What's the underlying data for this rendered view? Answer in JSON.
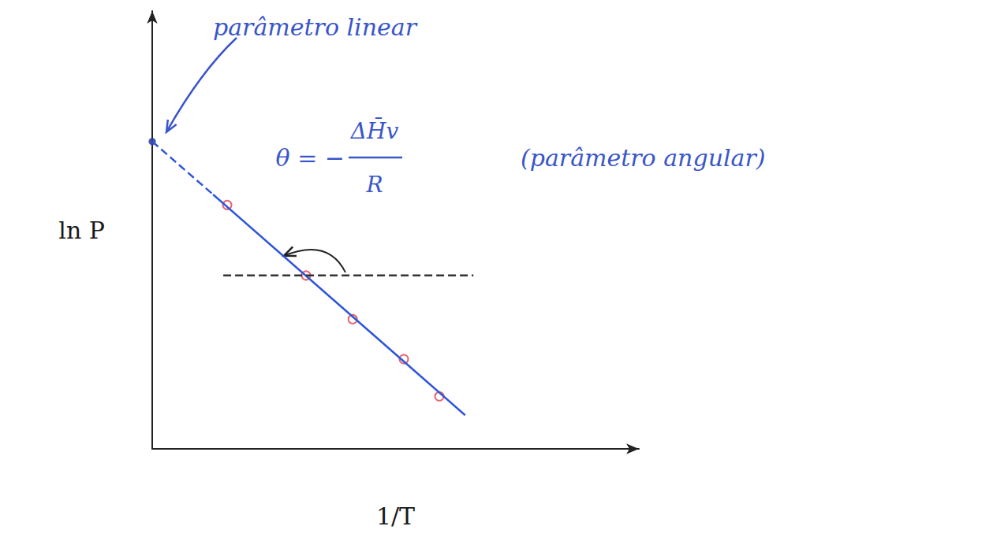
{
  "chart_data": {
    "type": "scatter",
    "x_label": "1/T",
    "y_label": "ln P",
    "xlim": [
      0,
      10
    ],
    "ylim": [
      0,
      10
    ],
    "tick_labels": false,
    "grid": false,
    "series": [
      {
        "type": "line",
        "color": "#2f56d8",
        "line_style": "dashed",
        "x": [
          0,
          1.25
        ],
        "values": [
          7.02,
          5.81
        ]
      },
      {
        "type": "line",
        "color": "#2f56d8",
        "line_style": "solid",
        "x": [
          1.25,
          6.43
        ],
        "values": [
          5.81,
          0.77
        ]
      },
      {
        "type": "line",
        "color": "#333333",
        "line_style": "dashed",
        "x": [
          1.46,
          6.6
        ],
        "values": [
          3.96,
          3.96
        ]
      },
      {
        "type": "scatter",
        "color": "#e0404a",
        "marker": "circle",
        "x": [
          1.54,
          3.16,
          4.12,
          5.17,
          5.9
        ],
        "values": [
          5.57,
          3.96,
          2.96,
          2.05,
          1.2
        ]
      },
      {
        "type": "scatter",
        "color": "#2f3fa0",
        "marker": "dot",
        "x": [
          0
        ],
        "values": [
          7.02
        ]
      }
    ],
    "annotations": {
      "intercept": "parâmetro linear",
      "slope": {
        "symbol": "θ = −",
        "numerator": "ΔH̄v",
        "denominator": "R",
        "note": "(parâmetro angular)"
      }
    }
  }
}
